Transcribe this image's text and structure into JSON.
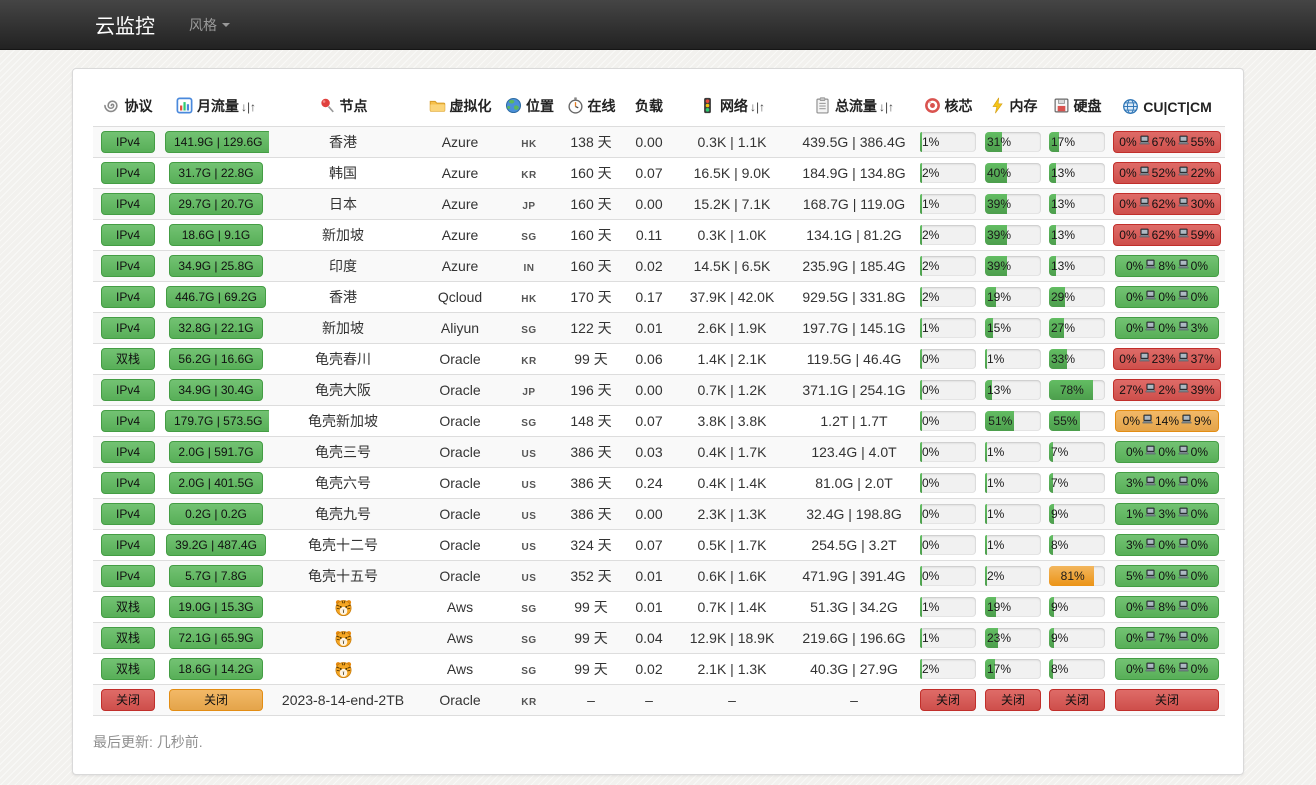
{
  "navbar": {
    "brand": "云监控",
    "menu": "风格"
  },
  "footer": {
    "text": "最后更新: 几秒前."
  },
  "colors": {
    "green": "#5cb85c",
    "red": "#d9534f",
    "orange": "#f0ad4e",
    "navbar_top": "#454545",
    "navbar_bottom": "#222222",
    "stripe": "#f9f9f9"
  },
  "table": {
    "sort_arrows": "↓|↑",
    "latency_separator_icon": "laptop-icon",
    "headers": [
      {
        "key": "protocol",
        "label": "协议",
        "icon": "paperclip-icon",
        "sortable": false
      },
      {
        "key": "monthly",
        "label": "月流量",
        "icon": "bar-chart-icon",
        "sortable": true
      },
      {
        "key": "node",
        "label": "节点",
        "icon": "pushpin-icon",
        "sortable": false
      },
      {
        "key": "virt",
        "label": "虚拟化",
        "icon": "folder-icon",
        "sortable": false
      },
      {
        "key": "location",
        "label": "位置",
        "icon": "globe-icon",
        "sortable": false
      },
      {
        "key": "online",
        "label": "在线",
        "icon": "stopwatch-icon",
        "sortable": false
      },
      {
        "key": "load",
        "label": "负载",
        "icon": "",
        "sortable": false
      },
      {
        "key": "network",
        "label": "网络",
        "icon": "traffic-light-icon",
        "sortable": true
      },
      {
        "key": "total",
        "label": "总流量",
        "icon": "clipboard-icon",
        "sortable": true
      },
      {
        "key": "core",
        "label": "核芯",
        "icon": "target-icon",
        "sortable": false
      },
      {
        "key": "memory",
        "label": "内存",
        "icon": "lightning-icon",
        "sortable": false
      },
      {
        "key": "disk",
        "label": "硬盘",
        "icon": "floppy-disk-icon",
        "sortable": false
      },
      {
        "key": "cucतcm",
        "label": "CU|CT|CM",
        "icon": "globe-mesh-icon",
        "sortable": false
      }
    ],
    "rows": [
      {
        "protocol": "IPv4",
        "protocol_color": "green",
        "monthly": "141.9G | 129.6G",
        "monthly_color": "green",
        "node": "香港",
        "virt": "Azure",
        "loc": "HK",
        "online": "138 天",
        "load": "0.00",
        "network": "0.3K | 1.1K",
        "total": "439.5G | 386.4G",
        "cpu": "1%",
        "mem": "31%",
        "disk": "17%",
        "disk_color": "green",
        "latency": {
          "parts": [
            "0%",
            "67%",
            "55%"
          ],
          "status": "red"
        }
      },
      {
        "protocol": "IPv4",
        "protocol_color": "green",
        "monthly": "31.7G | 22.8G",
        "monthly_color": "green",
        "node": "韩国",
        "virt": "Azure",
        "loc": "KR",
        "online": "160 天",
        "load": "0.07",
        "network": "16.5K | 9.0K",
        "total": "184.9G | 134.8G",
        "cpu": "2%",
        "mem": "40%",
        "disk": "13%",
        "disk_color": "green",
        "latency": {
          "parts": [
            "0%",
            "52%",
            "22%"
          ],
          "status": "red"
        }
      },
      {
        "protocol": "IPv4",
        "protocol_color": "green",
        "monthly": "29.7G | 20.7G",
        "monthly_color": "green",
        "node": "日本",
        "virt": "Azure",
        "loc": "JP",
        "online": "160 天",
        "load": "0.00",
        "network": "15.2K | 7.1K",
        "total": "168.7G | 119.0G",
        "cpu": "1%",
        "mem": "39%",
        "disk": "13%",
        "disk_color": "green",
        "latency": {
          "parts": [
            "0%",
            "62%",
            "30%"
          ],
          "status": "red"
        }
      },
      {
        "protocol": "IPv4",
        "protocol_color": "green",
        "monthly": "18.6G | 9.1G",
        "monthly_color": "green",
        "node": "新加坡",
        "virt": "Azure",
        "loc": "SG",
        "online": "160 天",
        "load": "0.11",
        "network": "0.3K | 1.0K",
        "total": "134.1G | 81.2G",
        "cpu": "2%",
        "mem": "39%",
        "disk": "13%",
        "disk_color": "green",
        "latency": {
          "parts": [
            "0%",
            "62%",
            "59%"
          ],
          "status": "red"
        }
      },
      {
        "protocol": "IPv4",
        "protocol_color": "green",
        "monthly": "34.9G | 25.8G",
        "monthly_color": "green",
        "node": "印度",
        "virt": "Azure",
        "loc": "IN",
        "online": "160 天",
        "load": "0.02",
        "network": "14.5K | 6.5K",
        "total": "235.9G | 185.4G",
        "cpu": "2%",
        "mem": "39%",
        "disk": "13%",
        "disk_color": "green",
        "latency": {
          "parts": [
            "0%",
            "8%",
            "0%"
          ],
          "status": "green"
        }
      },
      {
        "protocol": "IPv4",
        "protocol_color": "green",
        "monthly": "446.7G | 69.2G",
        "monthly_color": "green",
        "node": "香港",
        "virt": "Qcloud",
        "loc": "HK",
        "online": "170 天",
        "load": "0.17",
        "network": "37.9K | 42.0K",
        "total": "929.5G | 331.8G",
        "cpu": "2%",
        "mem": "19%",
        "disk": "29%",
        "disk_color": "green",
        "latency": {
          "parts": [
            "0%",
            "0%",
            "0%"
          ],
          "status": "green"
        }
      },
      {
        "protocol": "IPv4",
        "protocol_color": "green",
        "monthly": "32.8G | 22.1G",
        "monthly_color": "green",
        "node": "新加坡",
        "virt": "Aliyun",
        "loc": "SG",
        "online": "122 天",
        "load": "0.01",
        "network": "2.6K | 1.9K",
        "total": "197.7G | 145.1G",
        "cpu": "1%",
        "mem": "15%",
        "disk": "27%",
        "disk_color": "green",
        "latency": {
          "parts": [
            "0%",
            "0%",
            "3%"
          ],
          "status": "green"
        }
      },
      {
        "protocol": "双栈",
        "protocol_color": "green",
        "monthly": "56.2G | 16.6G",
        "monthly_color": "green",
        "node": "龟壳春川",
        "virt": "Oracle",
        "loc": "KR",
        "online": "99 天",
        "load": "0.06",
        "network": "1.4K | 2.1K",
        "total": "119.5G | 46.4G",
        "cpu": "0%",
        "mem": "1%",
        "disk": "33%",
        "disk_color": "green",
        "latency": {
          "parts": [
            "0%",
            "23%",
            "37%"
          ],
          "status": "red"
        }
      },
      {
        "protocol": "IPv4",
        "protocol_color": "green",
        "monthly": "34.9G | 30.4G",
        "monthly_color": "green",
        "node": "龟壳大阪",
        "virt": "Oracle",
        "loc": "JP",
        "online": "196 天",
        "load": "0.00",
        "network": "0.7K | 1.2K",
        "total": "371.1G | 254.1G",
        "cpu": "0%",
        "mem": "13%",
        "disk": "78%",
        "disk_color": "green",
        "latency": {
          "parts": [
            "27%",
            "2%",
            "39%"
          ],
          "status": "red"
        }
      },
      {
        "protocol": "IPv4",
        "protocol_color": "green",
        "monthly": "179.7G | 573.5G",
        "monthly_color": "green",
        "node": "龟壳新加坡",
        "virt": "Oracle",
        "loc": "SG",
        "online": "148 天",
        "load": "0.07",
        "network": "3.8K | 3.8K",
        "total": "1.2T | 1.7T",
        "cpu": "0%",
        "mem": "51%",
        "disk": "55%",
        "disk_color": "green",
        "latency": {
          "parts": [
            "0%",
            "14%",
            "9%"
          ],
          "status": "orange"
        }
      },
      {
        "protocol": "IPv4",
        "protocol_color": "green",
        "monthly": "2.0G | 591.7G",
        "monthly_color": "green",
        "node": "龟壳三号",
        "virt": "Oracle",
        "loc": "US",
        "online": "386 天",
        "load": "0.03",
        "network": "0.4K | 1.7K",
        "total": "123.4G | 4.0T",
        "cpu": "0%",
        "mem": "1%",
        "disk": "7%",
        "disk_color": "green",
        "latency": {
          "parts": [
            "0%",
            "0%",
            "0%"
          ],
          "status": "green"
        }
      },
      {
        "protocol": "IPv4",
        "protocol_color": "green",
        "monthly": "2.0G | 401.5G",
        "monthly_color": "green",
        "node": "龟壳六号",
        "virt": "Oracle",
        "loc": "US",
        "online": "386 天",
        "load": "0.24",
        "network": "0.4K | 1.4K",
        "total": "81.0G | 2.0T",
        "cpu": "0%",
        "mem": "1%",
        "disk": "7%",
        "disk_color": "green",
        "latency": {
          "parts": [
            "3%",
            "0%",
            "0%"
          ],
          "status": "green"
        }
      },
      {
        "protocol": "IPv4",
        "protocol_color": "green",
        "monthly": "0.2G | 0.2G",
        "monthly_color": "green",
        "node": "龟壳九号",
        "virt": "Oracle",
        "loc": "US",
        "online": "386 天",
        "load": "0.00",
        "network": "2.3K | 1.3K",
        "total": "32.4G | 198.8G",
        "cpu": "0%",
        "mem": "1%",
        "disk": "9%",
        "disk_color": "green",
        "latency": {
          "parts": [
            "1%",
            "3%",
            "0%"
          ],
          "status": "green"
        }
      },
      {
        "protocol": "IPv4",
        "protocol_color": "green",
        "monthly": "39.2G | 487.4G",
        "monthly_color": "green",
        "node": "龟壳十二号",
        "virt": "Oracle",
        "loc": "US",
        "online": "324 天",
        "load": "0.07",
        "network": "0.5K | 1.7K",
        "total": "254.5G | 3.2T",
        "cpu": "0%",
        "mem": "1%",
        "disk": "8%",
        "disk_color": "green",
        "latency": {
          "parts": [
            "3%",
            "0%",
            "0%"
          ],
          "status": "green"
        }
      },
      {
        "protocol": "IPv4",
        "protocol_color": "green",
        "monthly": "5.7G | 7.8G",
        "monthly_color": "green",
        "node": "龟壳十五号",
        "virt": "Oracle",
        "loc": "US",
        "online": "352 天",
        "load": "0.01",
        "network": "0.6K | 1.6K",
        "total": "471.9G | 391.4G",
        "cpu": "0%",
        "mem": "2%",
        "disk": "81%",
        "disk_color": "orange",
        "latency": {
          "parts": [
            "5%",
            "0%",
            "0%"
          ],
          "status": "green"
        }
      },
      {
        "protocol": "双栈",
        "protocol_color": "green",
        "monthly": "19.0G | 15.3G",
        "monthly_color": "green",
        "node": "",
        "node_icon": "tiger-icon",
        "virt": "Aws",
        "loc": "SG",
        "online": "99 天",
        "load": "0.01",
        "network": "0.7K | 1.4K",
        "total": "51.3G | 34.2G",
        "cpu": "1%",
        "mem": "19%",
        "disk": "9%",
        "disk_color": "green",
        "latency": {
          "parts": [
            "0%",
            "8%",
            "0%"
          ],
          "status": "green"
        }
      },
      {
        "protocol": "双栈",
        "protocol_color": "green",
        "monthly": "72.1G | 65.9G",
        "monthly_color": "green",
        "node": "",
        "node_icon": "tiger-icon",
        "virt": "Aws",
        "loc": "SG",
        "online": "99 天",
        "load": "0.04",
        "network": "12.9K | 18.9K",
        "total": "219.6G | 196.6G",
        "cpu": "1%",
        "mem": "23%",
        "disk": "9%",
        "disk_color": "green",
        "latency": {
          "parts": [
            "0%",
            "7%",
            "0%"
          ],
          "status": "green"
        }
      },
      {
        "protocol": "双栈",
        "protocol_color": "green",
        "monthly": "18.6G | 14.2G",
        "monthly_color": "green",
        "node": "",
        "node_icon": "tiger-icon",
        "virt": "Aws",
        "loc": "SG",
        "online": "99 天",
        "load": "0.02",
        "network": "2.1K | 1.3K",
        "total": "40.3G | 27.9G",
        "cpu": "2%",
        "mem": "17%",
        "disk": "8%",
        "disk_color": "green",
        "latency": {
          "parts": [
            "0%",
            "6%",
            "0%"
          ],
          "status": "green"
        }
      },
      {
        "closed": true,
        "protocol": "关闭",
        "protocol_color": "red",
        "monthly": "关闭",
        "monthly_color": "orange",
        "node": "2023-8-14-end-2TB",
        "virt": "Oracle",
        "loc": "KR",
        "online": "–",
        "load": "–",
        "network": "–",
        "total": "–",
        "core_badge": "关闭",
        "mem_badge": "关闭",
        "disk_badge": "关闭",
        "latency": {
          "parts": [
            "关闭"
          ],
          "status": "red"
        }
      }
    ]
  }
}
